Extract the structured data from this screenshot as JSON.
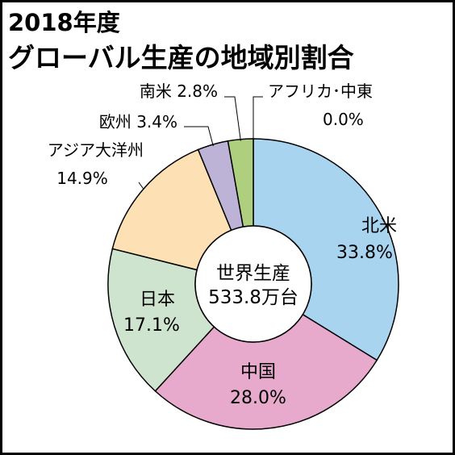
{
  "chart_data": {
    "type": "pie",
    "title_line1": "2018年度",
    "title_line2": "グローバル生産の地域別割合",
    "center_label": [
      "世界生産",
      "533.8万台"
    ],
    "slices": [
      {
        "name": "北米",
        "percent_label": "33.8%",
        "value": 33.8,
        "color": "#a9d4f0"
      },
      {
        "name": "中国",
        "percent_label": "28.0%",
        "value": 28.0,
        "color": "#e7aacd"
      },
      {
        "name": "日本",
        "percent_label": "17.1%",
        "value": 17.1,
        "color": "#cfe4ce"
      },
      {
        "name": "アジア大洋州",
        "percent_label": "14.9%",
        "value": 14.9,
        "color": "#fde0b4"
      },
      {
        "name": "欧州",
        "percent_label": "3.4%",
        "value": 3.4,
        "color": "#bcb3d6"
      },
      {
        "name": "南米",
        "percent_label": "2.8%",
        "value": 2.8,
        "color": "#aed07e"
      },
      {
        "name": "アフリカ･中東",
        "percent_label": "0.0%",
        "value": 0.0,
        "color": "#ffffff"
      }
    ]
  }
}
